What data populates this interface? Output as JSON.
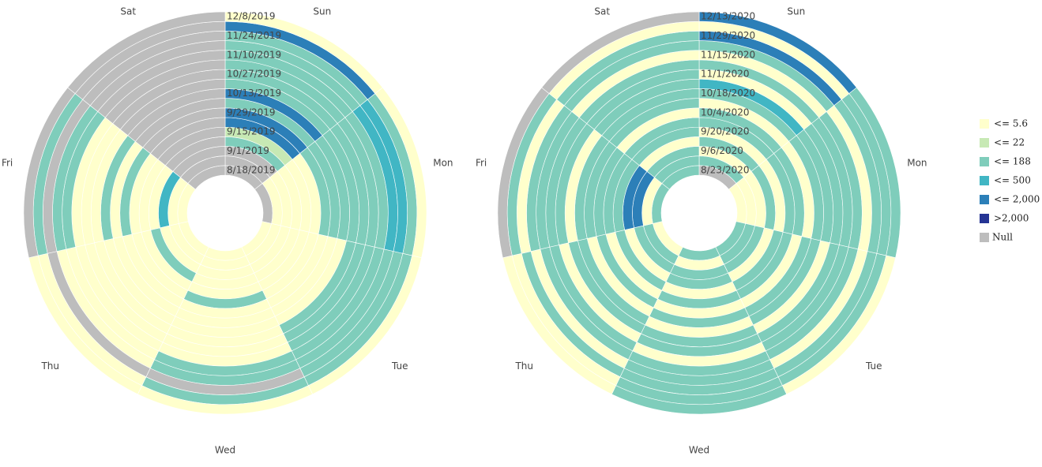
{
  "chart_data": [
    {
      "type": "radial-heatmap",
      "days": [
        "Sun",
        "Mon",
        "Tue",
        "Wed",
        "Thu",
        "Fri",
        "Sat"
      ],
      "weeks": [
        "8/18/2019",
        null,
        "9/1/2019",
        null,
        "9/15/2019",
        null,
        "9/29/2019",
        null,
        "10/13/2019",
        null,
        "10/27/2019",
        null,
        "11/10/2019",
        null,
        "11/24/2019",
        null,
        "12/8/2019"
      ],
      "values": [
        [
          null,
          null,
          3,
          3,
          3,
          3,
          null
        ],
        [
          null,
          3,
          3,
          3,
          3,
          3,
          null
        ],
        [
          null,
          3,
          3,
          3,
          3,
          300,
          null
        ],
        [
          100,
          3,
          3,
          3,
          100,
          3,
          null
        ],
        [
          15,
          3,
          3,
          3,
          3,
          3,
          null
        ],
        [
          1000,
          3,
          3,
          100,
          3,
          3,
          null
        ],
        [
          1000,
          100,
          3,
          3,
          3,
          100,
          null
        ],
        [
          100,
          100,
          3,
          3,
          3,
          3,
          null
        ],
        [
          1000,
          100,
          3,
          3,
          3,
          100,
          null
        ],
        [
          100,
          100,
          100,
          3,
          3,
          3,
          null
        ],
        [
          100,
          100,
          100,
          3,
          3,
          3,
          null
        ],
        [
          100,
          100,
          100,
          3,
          3,
          3,
          null
        ],
        [
          100,
          100,
          100,
          100,
          3,
          100,
          null
        ],
        [
          100,
          300,
          100,
          100,
          3,
          100,
          null
        ],
        [
          100,
          300,
          100,
          null,
          null,
          null,
          null
        ],
        [
          1000,
          100,
          100,
          100,
          3,
          100,
          null
        ],
        [
          3,
          3,
          3,
          3,
          3,
          null,
          null
        ]
      ]
    },
    {
      "type": "radial-heatmap",
      "days": [
        "Sun",
        "Mon",
        "Tue",
        "Wed",
        "Thu",
        "Fri",
        "Sat"
      ],
      "weeks": [
        "8/23/2020",
        null,
        "9/6/2020",
        null,
        "9/20/2020",
        null,
        "10/4/2020",
        null,
        "10/18/2020",
        null,
        "11/1/2020",
        null,
        "11/15/2020",
        null,
        "11/29/2020",
        null,
        "12/13/2020"
      ],
      "values": [
        [
          null,
          3,
          100,
          100,
          3,
          100,
          100
        ],
        [
          100,
          3,
          100,
          3,
          100,
          3,
          100
        ],
        [
          3,
          3,
          100,
          100,
          100,
          1000,
          100
        ],
        [
          100,
          100,
          3,
          100,
          3,
          1000,
          3
        ],
        [
          3,
          3,
          100,
          3,
          100,
          100,
          100
        ],
        [
          100,
          100,
          100,
          100,
          3,
          100,
          100
        ],
        [
          100,
          100,
          3,
          3,
          100,
          100,
          3
        ],
        [
          3,
          3,
          100,
          100,
          3,
          100,
          100
        ],
        [
          100,
          100,
          100,
          3,
          100,
          100,
          100
        ],
        [
          300,
          100,
          3,
          100,
          100,
          3,
          100
        ],
        [
          3,
          100,
          100,
          100,
          3,
          100,
          100
        ],
        [
          100,
          100,
          100,
          3,
          100,
          100,
          100
        ],
        [
          3,
          100,
          100,
          100,
          100,
          100,
          3
        ],
        [
          100,
          3,
          3,
          100,
          3,
          100,
          100
        ],
        [
          1000,
          100,
          100,
          100,
          100,
          3,
          100
        ],
        [
          3,
          100,
          100,
          100,
          3,
          100,
          3
        ],
        [
          1000,
          100,
          3,
          100,
          3,
          null,
          null
        ]
      ]
    }
  ],
  "legend": {
    "items": [
      {
        "label": "<= 5.6",
        "color": "#ffffcc",
        "max": 5.6
      },
      {
        "label": "<= 22",
        "color": "#c7e9b4",
        "max": 22
      },
      {
        "label": "<= 188",
        "color": "#7fcdbb",
        "max": 188
      },
      {
        "label": "<= 500",
        "color": "#41b6c4",
        "max": 500
      },
      {
        "label": "<= 2,000",
        "color": "#2c7fb8",
        "max": 2000
      },
      {
        "label": ">2,000",
        "color": "#253494"
      }
    ],
    "null_label": "Null",
    "null_color": "#bdbdbd"
  }
}
